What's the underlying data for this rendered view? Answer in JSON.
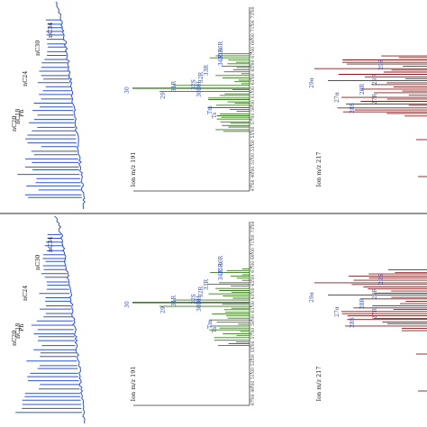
{
  "chart_data": [
    {
      "type": "line",
      "panel": "top",
      "subplots": [
        {
          "id": "tic",
          "color": "#2f53d6",
          "peak_labels": [
            "nC34",
            "nC30",
            "nC24",
            "Ph",
            "nC18",
            "nC20"
          ]
        },
        {
          "id": "m191",
          "title": "Ion m/z 191",
          "color": "#3a7d1e",
          "tick_labels": [
            "47.00",
            "49.00",
            "51.00",
            "53.00",
            "55.00",
            "57.00",
            "59.00",
            "61.00",
            "63.00",
            "65.00",
            "67.00",
            "69.00",
            "71.00",
            "73.00"
          ],
          "peak_labels": [
            "36R",
            "35R",
            "34R",
            "33R",
            "32R",
            "32S",
            "31R",
            "30",
            "29",
            "30DH",
            "Tm",
            "Ts"
          ]
        },
        {
          "id": "m217",
          "title": "Ion m/z 217",
          "color": "#8b1a1a",
          "peak_labels": [
            "29S",
            "29R",
            "29α",
            "28R",
            "27R",
            "27α",
            "28S"
          ]
        }
      ]
    },
    {
      "type": "line",
      "panel": "bottom",
      "subplots": [
        {
          "id": "tic",
          "color": "#2f53d6",
          "peak_labels": [
            "nC34",
            "nC30",
            "nC24",
            "Ph",
            "nC18",
            "nC20"
          ]
        },
        {
          "id": "m191",
          "title": "Ion m/z 191",
          "color": "#3a7d1e",
          "tick_labels": [
            "47.00",
            "49.00",
            "51.00",
            "53.00",
            "55.00",
            "57.00",
            "59.00",
            "61.00",
            "63.00",
            "65.00",
            "67.00",
            "69.00",
            "71.00",
            "73.00"
          ],
          "peak_labels": [
            "36R",
            "35R",
            "34R",
            "33R",
            "32R",
            "32S",
            "31R",
            "30",
            "29",
            "30DH",
            "Tm",
            "Ts"
          ]
        },
        {
          "id": "m217",
          "title": "Ion m/z 217",
          "color": "#8b1a1a",
          "peak_labels": [
            "29S",
            "29R",
            "29α",
            "28R",
            "27R",
            "27α",
            "28S"
          ]
        }
      ]
    }
  ]
}
